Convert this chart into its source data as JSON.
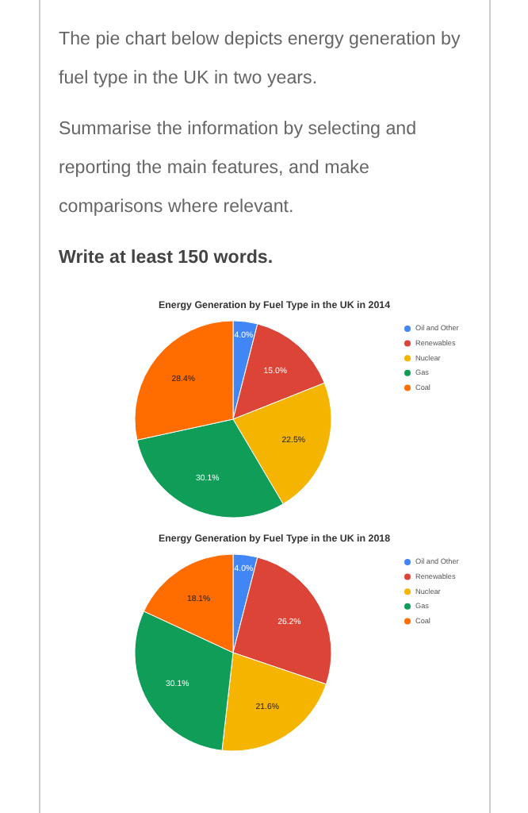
{
  "chart_data": [
    {
      "type": "other",
      "annotations": [
        "The pie chart below depicts energy generation by fuel type in the UK in two years.",
        "Summarise the information by selecting and reporting the main features, and make comparisons where relevant.",
        "Write at least 150 words."
      ]
    },
    {
      "type": "pie",
      "title": "Energy Generation by Fuel Type in the UK in 2014",
      "categories": [
        "Oil and Other",
        "Renewables",
        "Nuclear",
        "Gas",
        "Coal"
      ],
      "values": [
        4.0,
        15.0,
        22.5,
        30.1,
        28.4
      ],
      "colors": [
        "#4285f4",
        "#db4437",
        "#f4b400",
        "#0f9d58",
        "#ff6d01"
      ],
      "value_labels": [
        "4.0%",
        "15.0%",
        "22.5%",
        "30.1%",
        "28.4%"
      ],
      "legend": "top right"
    },
    {
      "type": "pie",
      "title": "Energy Generation by Fuel Type in the UK in 2018",
      "categories": [
        "Oil and Other",
        "Renewables",
        "Nuclear",
        "Gas",
        "Coal"
      ],
      "values": [
        4.0,
        26.2,
        21.6,
        30.1,
        18.1
      ],
      "colors": [
        "#4285f4",
        "#db4437",
        "#f4b400",
        "#0f9d58",
        "#ff6d01"
      ],
      "value_labels": [
        "4.0%",
        "26.2%",
        "21.6%",
        "30.1%",
        "18.1%"
      ],
      "legend": "top right"
    }
  ]
}
